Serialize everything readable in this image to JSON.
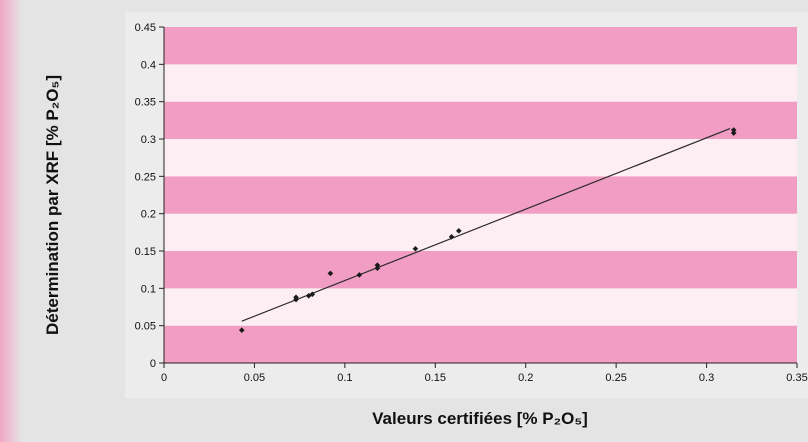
{
  "chart_data": {
    "type": "scatter",
    "title": "",
    "xlabel": "Valeurs certifiées [% P₂O₅]",
    "ylabel": "Détermination par XRF [% P₂O₅]",
    "xlim": [
      0,
      0.35
    ],
    "ylim": [
      0,
      0.45
    ],
    "x_ticks": [
      0,
      0.05,
      0.1,
      0.15,
      0.2,
      0.25,
      0.3,
      0.35
    ],
    "x_tick_labels": [
      "0",
      "0.05",
      "0.1",
      "0.15",
      "0.2",
      "0.25",
      "0.3",
      "0.35"
    ],
    "y_ticks": [
      0,
      0.05,
      0.1,
      0.15,
      0.2,
      0.25,
      0.3,
      0.35,
      0.4,
      0.45
    ],
    "y_tick_labels": [
      "0",
      "0.05",
      "0.1",
      "0.15",
      "0.2",
      "0.25",
      "0.3",
      "0.35",
      "0.4",
      "0.45"
    ],
    "grid": false,
    "background_bands": true,
    "series": [
      {
        "points": [
          {
            "x": 0.043,
            "y": 0.044
          },
          {
            "x": 0.073,
            "y": 0.085
          },
          {
            "x": 0.073,
            "y": 0.088
          },
          {
            "x": 0.08,
            "y": 0.09
          },
          {
            "x": 0.082,
            "y": 0.092
          },
          {
            "x": 0.092,
            "y": 0.12
          },
          {
            "x": 0.108,
            "y": 0.118
          },
          {
            "x": 0.118,
            "y": 0.127
          },
          {
            "x": 0.118,
            "y": 0.131
          },
          {
            "x": 0.139,
            "y": 0.153
          },
          {
            "x": 0.159,
            "y": 0.169
          },
          {
            "x": 0.163,
            "y": 0.177
          },
          {
            "x": 0.315,
            "y": 0.308
          },
          {
            "x": 0.315,
            "y": 0.312
          }
        ]
      }
    ],
    "trendline": {
      "x": [
        0.043,
        0.313
      ],
      "y": [
        0.056,
        0.314
      ]
    },
    "colors": {
      "outer_background": "#e4e4e4",
      "left_edge": "#f1a7c5",
      "band_dark": "#f29dc3",
      "band_light": "#fdeef4",
      "points": "#1a1a1a",
      "line": "#2a2a2a"
    }
  }
}
